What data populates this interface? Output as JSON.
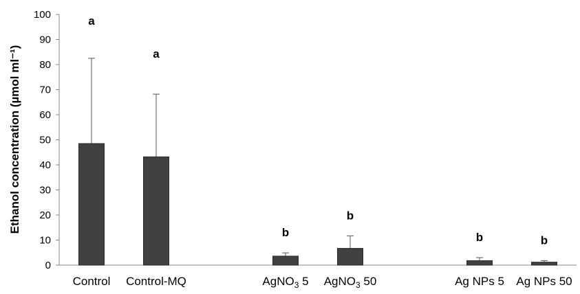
{
  "chart_data": {
    "type": "bar",
    "title": "",
    "xlabel": "",
    "ylabel": "Ethanol concentration (µmol ml⁻¹)",
    "ylim": [
      0,
      100
    ],
    "yticks": [
      0,
      10,
      20,
      30,
      40,
      50,
      60,
      70,
      80,
      90,
      100
    ],
    "grid": false,
    "legend": "none",
    "bar_color": "#404040",
    "error_color": "#555555",
    "categories": [
      {
        "label": "Control",
        "has_sub": false
      },
      {
        "label": "Control-MQ",
        "has_sub": false
      },
      {
        "label": "",
        "has_sub": false
      },
      {
        "label": "AgNO3 5",
        "base": "AgNO",
        "sub": "3",
        "rest": " 5",
        "has_sub": true
      },
      {
        "label": "AgNO3 50",
        "base": "AgNO",
        "sub": "3",
        "rest": " 50",
        "has_sub": true
      },
      {
        "label": "",
        "has_sub": false
      },
      {
        "label": "Ag NPs 5",
        "has_sub": false
      },
      {
        "label": "Ag NPs 50",
        "has_sub": false
      }
    ],
    "values": [
      48.5,
      43.2,
      null,
      3.6,
      6.7,
      null,
      1.8,
      1.2
    ],
    "errors": [
      34.0,
      25.0,
      null,
      1.3,
      5.0,
      null,
      1.2,
      0.6
    ],
    "letters": [
      "a",
      "a",
      "",
      "b",
      "b",
      "",
      "b",
      "b"
    ]
  }
}
